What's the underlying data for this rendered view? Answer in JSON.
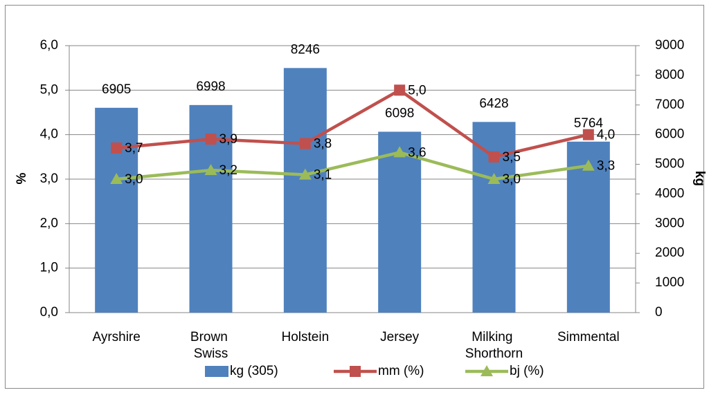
{
  "chart_data": {
    "type": "bar-line",
    "categories": [
      "Ayrshire",
      "Brown Swiss",
      "Holstein",
      "Jersey",
      "Milking Shorthorn",
      "Simmental"
    ],
    "ylabel": "%",
    "y2label": "kg",
    "ylim": [
      0,
      6
    ],
    "yticks": [
      {
        "value": 0,
        "label": "0,0"
      },
      {
        "value": 1,
        "label": "1,0"
      },
      {
        "value": 2,
        "label": "2,0"
      },
      {
        "value": 3,
        "label": "3,0"
      },
      {
        "value": 4,
        "label": "4,0"
      },
      {
        "value": 5,
        "label": "5,0"
      },
      {
        "value": 6,
        "label": "6,0"
      }
    ],
    "y2lim": [
      0,
      9000
    ],
    "y2ticks": [
      0,
      1000,
      2000,
      3000,
      4000,
      5000,
      6000,
      7000,
      8000,
      9000
    ],
    "grid": true,
    "series": [
      {
        "name": "kg (305)",
        "type": "bar",
        "axis": "y2",
        "color": "#4f81bd",
        "values": [
          6905,
          6998,
          8246,
          6098,
          6428,
          5764
        ]
      },
      {
        "name": "mm (%)",
        "type": "line",
        "marker": "square",
        "color": "#c0504d",
        "values": [
          3.7,
          3.9,
          3.8,
          5.0,
          3.5,
          4.0
        ],
        "value_labels": [
          "3,7",
          "3,9",
          "3,8",
          "5,0",
          "3,5",
          "4,0"
        ]
      },
      {
        "name": "bj (%)",
        "type": "line",
        "marker": "triangle",
        "color": "#9bbb59",
        "values": [
          3.0,
          3.2,
          3.1,
          3.6,
          3.0,
          3.3
        ],
        "value_labels": [
          "3,0",
          "3,2",
          "3,1",
          "3,6",
          "3,0",
          "3,3"
        ]
      }
    ]
  }
}
